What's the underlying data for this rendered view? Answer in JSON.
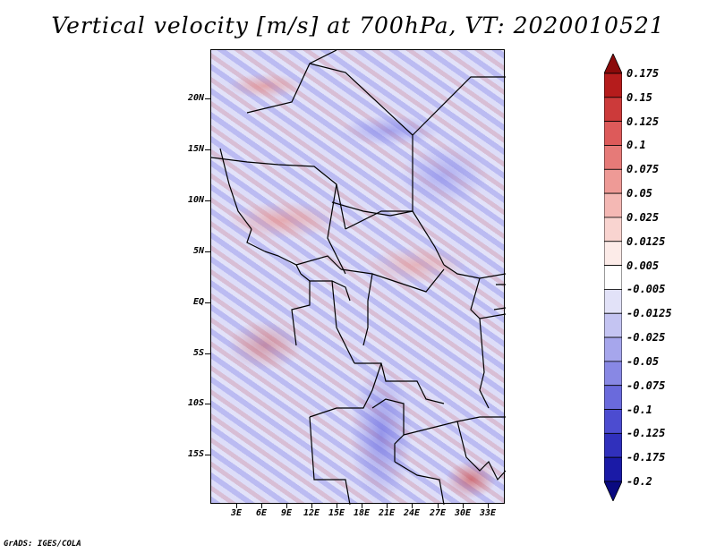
{
  "title": "Vertical velocity [m/s] at 700hPa, VT: 2020010521",
  "footer": "GrADS: IGES/COLA",
  "lat_labels": [
    "20N",
    "15N",
    "10N",
    "5N",
    "EQ",
    "5S",
    "10S",
    "15S"
  ],
  "lon_labels": [
    "3E",
    "6E",
    "9E",
    "12E",
    "15E",
    "18E",
    "21E",
    "24E",
    "27E",
    "30E",
    "33E"
  ],
  "colorbar": {
    "labels": [
      "0.175",
      "0.15",
      "0.125",
      "0.1",
      "0.075",
      "0.05",
      "0.025",
      "0.0125",
      "0.005",
      "-0.005",
      "-0.0125",
      "-0.025",
      "-0.05",
      "-0.075",
      "-0.1",
      "-0.125",
      "-0.175",
      "-0.2"
    ],
    "colors": [
      "#8b0a0a",
      "#b51c1c",
      "#cc3a3a",
      "#dd5a5a",
      "#e67a78",
      "#ee9a96",
      "#f4b8b4",
      "#f9d4d0",
      "#fcebe8",
      "#ffffff",
      "#e2e2f8",
      "#c4c4f2",
      "#a6a6ec",
      "#8888e4",
      "#6a6adc",
      "#4c4cd0",
      "#3030bc",
      "#1a1aa6",
      "#0a0a80"
    ]
  },
  "map": {
    "lat_range": [
      -20,
      25
    ],
    "lon_range": [
      0,
      35
    ]
  }
}
